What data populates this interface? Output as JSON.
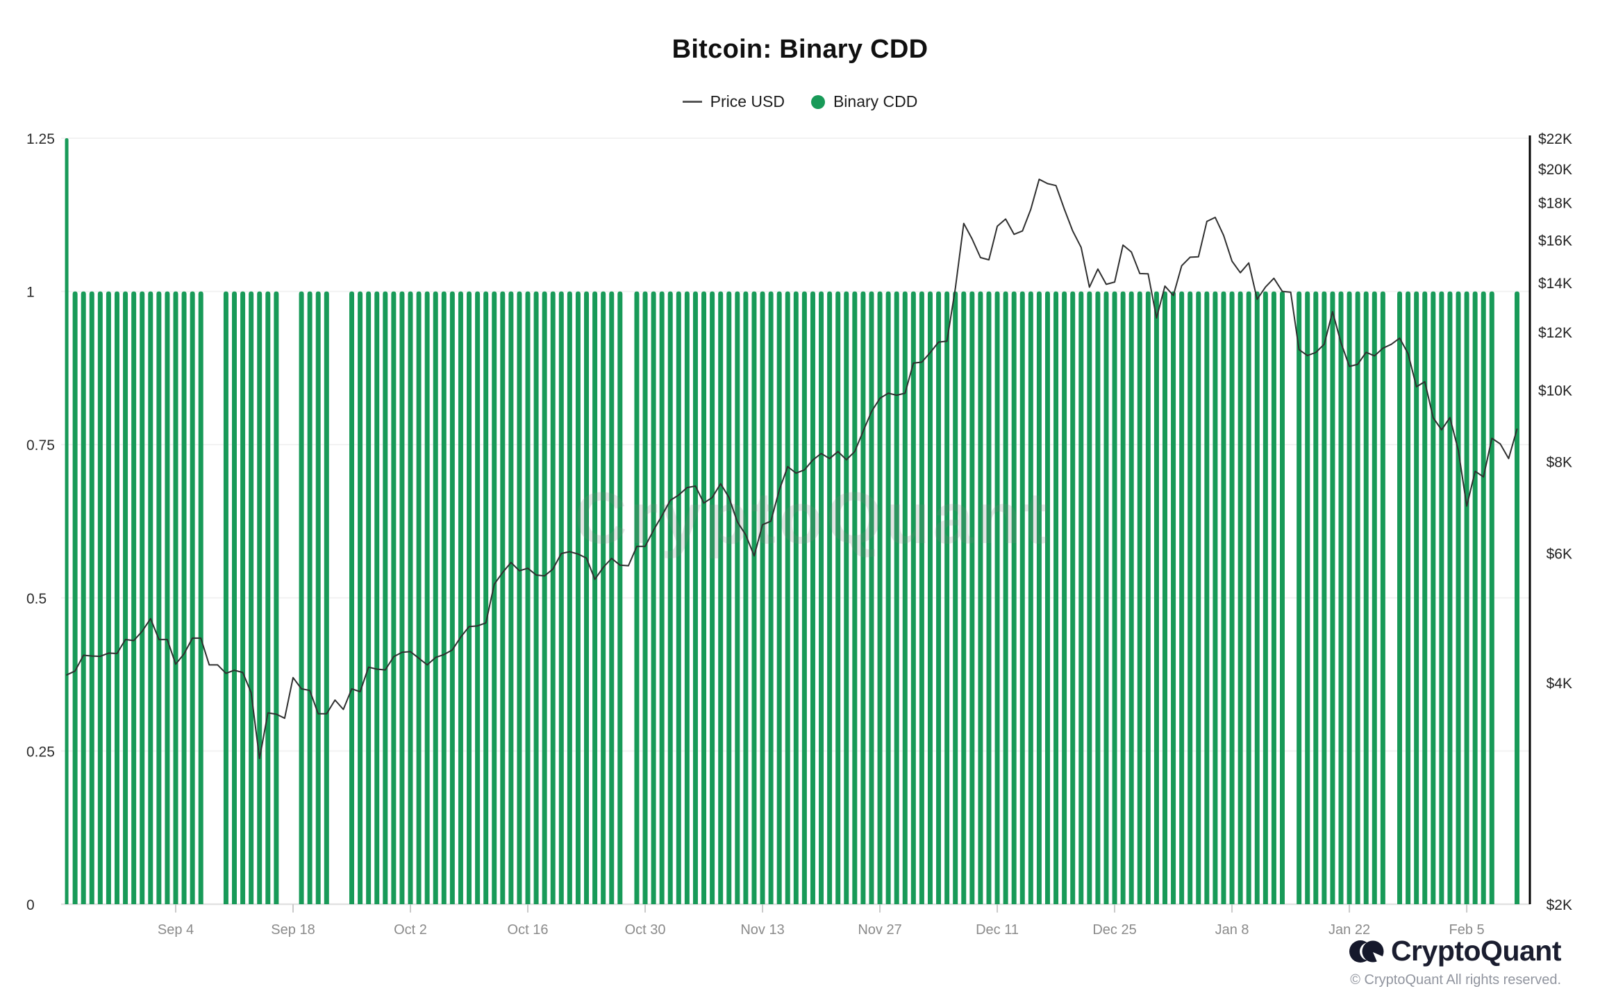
{
  "header": {
    "title": "Bitcoin: Binary CDD"
  },
  "legend": {
    "price_label": "Price USD",
    "cdd_label": "Binary CDD"
  },
  "watermark": "CryptoQuant",
  "footer": {
    "brand": "CryptoQuant",
    "copyright": "© CryptoQuant All rights reserved."
  },
  "chart_data": {
    "type": "bar+line",
    "title": "Bitcoin: Binary CDD",
    "grid": "horizontal-faint",
    "legend_position": "top-center",
    "colors": {
      "bar": "#189a58",
      "price_line": "#2f2f2f",
      "grid": "#f2f2f2",
      "baseline": "#e2e2e2",
      "right_axis_line": "#000000",
      "left_label": "#2b2b2b",
      "right_label": "#222222",
      "x_label": "#8a8a8a",
      "tick": "#c9c9c9"
    },
    "left_axis": {
      "series": "Binary CDD",
      "range": [
        0,
        1.25
      ],
      "ticks": [
        0,
        0.25,
        0.5,
        0.75,
        1,
        1.25
      ]
    },
    "right_axis": {
      "series": "Price USD",
      "scale": "log",
      "range": [
        2000,
        22000
      ],
      "ticks": [
        2000,
        4000,
        6000,
        8000,
        10000,
        12000,
        14000,
        16000,
        18000,
        20000,
        22000
      ],
      "labels": [
        "$2K",
        "$4K",
        "$6K",
        "$8K",
        "$10K",
        "$12K",
        "$14K",
        "$16K",
        "$18K",
        "$20K",
        "$22K"
      ]
    },
    "x_axis": {
      "ticks": [
        "Sep 4",
        "Sep 18",
        "Oct 2",
        "Oct 16",
        "Oct 30",
        "Nov 13",
        "Nov 27",
        "Dec 11",
        "Dec 25",
        "Jan 8",
        "Jan 22",
        "Feb 5"
      ]
    },
    "days_format": [
      "date",
      "binary_cdd",
      "price_usd"
    ],
    "days": [
      [
        "Aug 22",
        1.25,
        4100
      ],
      [
        "Aug 23",
        1,
        4150
      ],
      [
        "Aug 24",
        1,
        4360
      ],
      [
        "Aug 25",
        1,
        4350
      ],
      [
        "Aug 26",
        1,
        4345
      ],
      [
        "Aug 27",
        1,
        4390
      ],
      [
        "Aug 28",
        1,
        4384
      ],
      [
        "Aug 29",
        1,
        4580
      ],
      [
        "Aug 30",
        1,
        4565
      ],
      [
        "Aug 31",
        1,
        4700
      ],
      [
        "Sep 1",
        1,
        4890
      ],
      [
        "Sep 2",
        1,
        4580
      ],
      [
        "Sep 3",
        1,
        4580
      ],
      [
        "Sep 4",
        1,
        4240
      ],
      [
        "Sep 5",
        1,
        4380
      ],
      [
        "Sep 6",
        1,
        4600
      ],
      [
        "Sep 7",
        1,
        4600
      ],
      [
        "Sep 8",
        0,
        4230
      ],
      [
        "Sep 9",
        0,
        4230
      ],
      [
        "Sep 10",
        1,
        4120
      ],
      [
        "Sep 11",
        1,
        4160
      ],
      [
        "Sep 12",
        1,
        4130
      ],
      [
        "Sep 13",
        1,
        3880
      ],
      [
        "Sep 14",
        1,
        3155
      ],
      [
        "Sep 15",
        1,
        3640
      ],
      [
        "Sep 16",
        1,
        3625
      ],
      [
        "Sep 17",
        0,
        3580
      ],
      [
        "Sep 18",
        0,
        4065
      ],
      [
        "Sep 19",
        1,
        3925
      ],
      [
        "Sep 20",
        1,
        3905
      ],
      [
        "Sep 21",
        1,
        3630
      ],
      [
        "Sep 22",
        1,
        3630
      ],
      [
        "Sep 23",
        0,
        3790
      ],
      [
        "Sep 24",
        0,
        3680
      ],
      [
        "Sep 25",
        1,
        3925
      ],
      [
        "Sep 26",
        1,
        3890
      ],
      [
        "Sep 27",
        1,
        4200
      ],
      [
        "Sep 28",
        1,
        4175
      ],
      [
        "Sep 29",
        1,
        4165
      ],
      [
        "Sep 30",
        1,
        4340
      ],
      [
        "Oct 1",
        1,
        4400
      ],
      [
        "Oct 2",
        1,
        4410
      ],
      [
        "Oct 3",
        1,
        4320
      ],
      [
        "Oct 4",
        1,
        4230
      ],
      [
        "Oct 5",
        1,
        4330
      ],
      [
        "Oct 6",
        1,
        4370
      ],
      [
        "Oct 7",
        1,
        4435
      ],
      [
        "Oct 8",
        1,
        4615
      ],
      [
        "Oct 9",
        1,
        4770
      ],
      [
        "Oct 10",
        1,
        4780
      ],
      [
        "Oct 11",
        1,
        4825
      ],
      [
        "Oct 12",
        1,
        5445
      ],
      [
        "Oct 13",
        1,
        5650
      ],
      [
        "Oct 14",
        1,
        5830
      ],
      [
        "Oct 15",
        1,
        5680
      ],
      [
        "Oct 16",
        1,
        5725
      ],
      [
        "Oct 17",
        1,
        5605
      ],
      [
        "Oct 18",
        1,
        5590
      ],
      [
        "Oct 19",
        1,
        5710
      ],
      [
        "Oct 20",
        1,
        5995
      ],
      [
        "Oct 21",
        1,
        6030
      ],
      [
        "Oct 22",
        1,
        5985
      ],
      [
        "Oct 23",
        1,
        5910
      ],
      [
        "Oct 24",
        1,
        5530
      ],
      [
        "Oct 25",
        1,
        5740
      ],
      [
        "Oct 26",
        1,
        5905
      ],
      [
        "Oct 27",
        1,
        5780
      ],
      [
        "Oct 28",
        0,
        5770
      ],
      [
        "Oct 29",
        1,
        6130
      ],
      [
        "Oct 30",
        1,
        6130
      ],
      [
        "Oct 31",
        1,
        6450
      ],
      [
        "Nov 1",
        1,
        6750
      ],
      [
        "Nov 2",
        1,
        7080
      ],
      [
        "Nov 3",
        1,
        7200
      ],
      [
        "Nov 4",
        1,
        7370
      ],
      [
        "Nov 5",
        1,
        7405
      ],
      [
        "Nov 6",
        1,
        7020
      ],
      [
        "Nov 7",
        1,
        7145
      ],
      [
        "Nov 8",
        1,
        7460
      ],
      [
        "Nov 9",
        1,
        7145
      ],
      [
        "Nov 10",
        1,
        6620
      ],
      [
        "Nov 11",
        1,
        6355
      ],
      [
        "Nov 12",
        1,
        5950
      ],
      [
        "Nov 13",
        1,
        6560
      ],
      [
        "Nov 14",
        1,
        6635
      ],
      [
        "Nov 15",
        1,
        7315
      ],
      [
        "Nov 16",
        1,
        7870
      ],
      [
        "Nov 17",
        1,
        7710
      ],
      [
        "Nov 18",
        1,
        7790
      ],
      [
        "Nov 19",
        1,
        8035
      ],
      [
        "Nov 20",
        1,
        8200
      ],
      [
        "Nov 21",
        1,
        8070
      ],
      [
        "Nov 22",
        1,
        8250
      ],
      [
        "Nov 23",
        1,
        8040
      ],
      [
        "Nov 24",
        1,
        8250
      ],
      [
        "Nov 25",
        1,
        8790
      ],
      [
        "Nov 26",
        1,
        9350
      ],
      [
        "Nov 27",
        1,
        9745
      ],
      [
        "Nov 28",
        1,
        9905
      ],
      [
        "Nov 29",
        1,
        9840
      ],
      [
        "Nov 30",
        1,
        9905
      ],
      [
        "Dec 1",
        1,
        10880
      ],
      [
        "Dec 2",
        1,
        10915
      ],
      [
        "Dec 3",
        1,
        11245
      ],
      [
        "Dec 4",
        1,
        11620
      ],
      [
        "Dec 5",
        1,
        11655
      ],
      [
        "Dec 6",
        1,
        13750
      ],
      [
        "Dec 7",
        1,
        16850
      ],
      [
        "Dec 8",
        1,
        16050
      ],
      [
        "Dec 9",
        1,
        15140
      ],
      [
        "Dec 10",
        1,
        15035
      ],
      [
        "Dec 11",
        1,
        16700
      ],
      [
        "Dec 12",
        1,
        17080
      ],
      [
        "Dec 13",
        1,
        16285
      ],
      [
        "Dec 14",
        1,
        16455
      ],
      [
        "Dec 15",
        1,
        17605
      ],
      [
        "Dec 16",
        1,
        19345
      ],
      [
        "Dec 17",
        1,
        19085
      ],
      [
        "Dec 18",
        1,
        18970
      ],
      [
        "Dec 19",
        1,
        17625
      ],
      [
        "Dec 20",
        1,
        16455
      ],
      [
        "Dec 21",
        1,
        15630
      ],
      [
        "Dec 22",
        1,
        13800
      ],
      [
        "Dec 23",
        1,
        14605
      ],
      [
        "Dec 24",
        1,
        13925
      ],
      [
        "Dec 25",
        1,
        14025
      ],
      [
        "Dec 26",
        1,
        15745
      ],
      [
        "Dec 27",
        1,
        15405
      ],
      [
        "Dec 28",
        1,
        14400
      ],
      [
        "Dec 29",
        1,
        14390
      ],
      [
        "Dec 30",
        1,
        12530
      ],
      [
        "Dec 31",
        1,
        13850
      ],
      [
        "Jan 1",
        1,
        13445
      ],
      [
        "Jan 2",
        1,
        14755
      ],
      [
        "Jan 3",
        1,
        15155
      ],
      [
        "Jan 4",
        1,
        15180
      ],
      [
        "Jan 5",
        1,
        16955
      ],
      [
        "Jan 6",
        1,
        17170
      ],
      [
        "Jan 7",
        1,
        16230
      ],
      [
        "Jan 8",
        1,
        14970
      ],
      [
        "Jan 9",
        1,
        14440
      ],
      [
        "Jan 10",
        1,
        14890
      ],
      [
        "Jan 11",
        1,
        13285
      ],
      [
        "Jan 12",
        1,
        13810
      ],
      [
        "Jan 13",
        1,
        14190
      ],
      [
        "Jan 14",
        1,
        13620
      ],
      [
        "Jan 15",
        0,
        13585
      ],
      [
        "Jan 16",
        1,
        11350
      ],
      [
        "Jan 17",
        1,
        11140
      ],
      [
        "Jan 18",
        1,
        11250
      ],
      [
        "Jan 19",
        1,
        11545
      ],
      [
        "Jan 20",
        1,
        12780
      ],
      [
        "Jan 21",
        1,
        11600
      ],
      [
        "Jan 22",
        1,
        10770
      ],
      [
        "Jan 23",
        1,
        10840
      ],
      [
        "Jan 24",
        1,
        11255
      ],
      [
        "Jan 25",
        1,
        11130
      ],
      [
        "Jan 26",
        1,
        11400
      ],
      [
        "Jan 27",
        0,
        11540
      ],
      [
        "Jan 28",
        1,
        11765
      ],
      [
        "Jan 29",
        1,
        11210
      ],
      [
        "Jan 30",
        1,
        10105
      ],
      [
        "Jan 31",
        1,
        10265
      ],
      [
        "Feb 1",
        1,
        9170
      ],
      [
        "Feb 2",
        1,
        8830
      ],
      [
        "Feb 3",
        1,
        9175
      ],
      [
        "Feb 4",
        1,
        8280
      ],
      [
        "Feb 5",
        1,
        6955
      ],
      [
        "Feb 6",
        1,
        7755
      ],
      [
        "Feb 7",
        1,
        7620
      ],
      [
        "Feb 8",
        1,
        8600
      ],
      [
        "Feb 9",
        0,
        8450
      ],
      [
        "Feb 10",
        0,
        8070
      ],
      [
        "Feb 11",
        1,
        8850
      ]
    ]
  }
}
